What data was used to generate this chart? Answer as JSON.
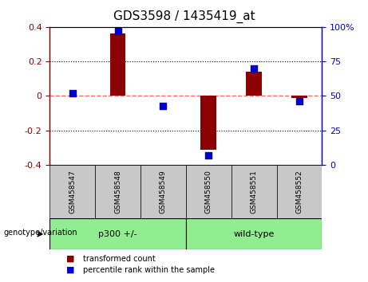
{
  "title": "GDS3598 / 1435419_at",
  "samples": [
    "GSM458547",
    "GSM458548",
    "GSM458549",
    "GSM458550",
    "GSM458551",
    "GSM458552"
  ],
  "bar_values": [
    0.0,
    0.36,
    0.0,
    -0.31,
    0.14,
    -0.01
  ],
  "dot_values_pct": [
    52,
    97,
    43,
    7,
    70,
    46
  ],
  "ylim": [
    -0.4,
    0.4
  ],
  "y2lim": [
    0,
    100
  ],
  "yticks": [
    -0.4,
    -0.2,
    0.0,
    0.2,
    0.4
  ],
  "y2ticks": [
    0,
    25,
    50,
    75,
    100
  ],
  "bar_color": "#8B0000",
  "dot_color": "#0000CD",
  "hline_color": "#FF6666",
  "grid_color": "#000000",
  "groups": [
    {
      "label": "p300 +/-",
      "indices": [
        0,
        1,
        2
      ],
      "color": "#90EE90"
    },
    {
      "label": "wild-type",
      "indices": [
        3,
        4,
        5
      ],
      "color": "#90EE90"
    }
  ],
  "genotype_label": "genotype/variation",
  "legend1": "transformed count",
  "legend2": "percentile rank within the sample",
  "bg_color": "#FFFFFF",
  "sample_box_color": "#C8C8C8",
  "bar_width": 0.35,
  "dot_size": 35,
  "label_fontsize": 9,
  "tick_fontsize": 8,
  "title_fontsize": 11
}
